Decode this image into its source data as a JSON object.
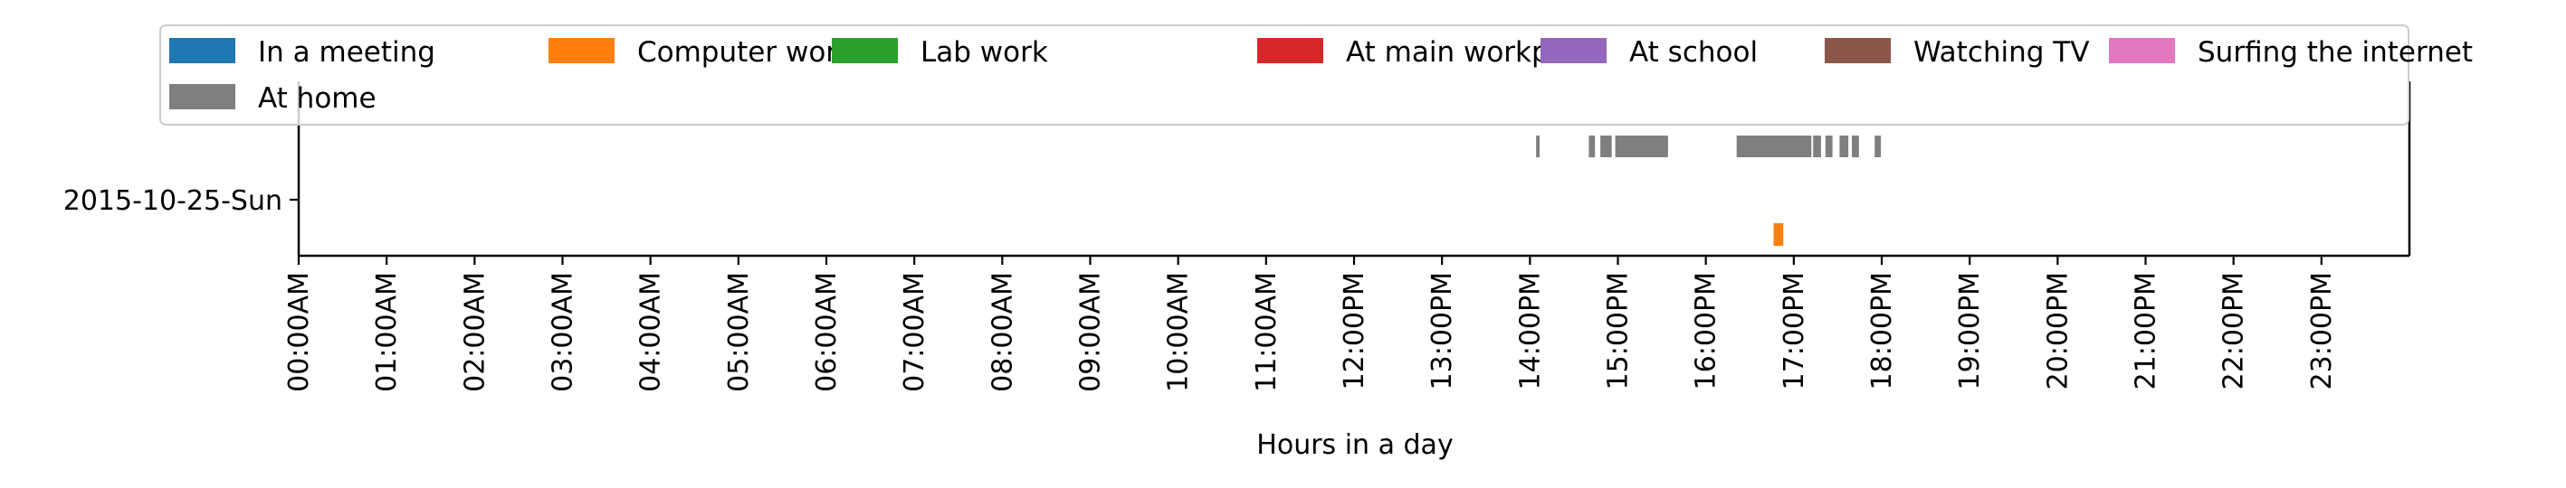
{
  "chart_data": {
    "type": "timeline",
    "xlabel": "Hours in a day",
    "x_ticks": [
      "00:00AM",
      "01:00AM",
      "02:00AM",
      "03:00AM",
      "04:00AM",
      "05:00AM",
      "06:00AM",
      "07:00AM",
      "08:00AM",
      "09:00AM",
      "10:00AM",
      "11:00AM",
      "12:00PM",
      "13:00PM",
      "14:00PM",
      "15:00PM",
      "16:00PM",
      "17:00PM",
      "18:00PM",
      "19:00PM",
      "20:00PM",
      "21:00PM",
      "22:00PM",
      "23:00PM"
    ],
    "xlim_hours": [
      0,
      24
    ],
    "y_categories": [
      "2015-10-25-Sun"
    ],
    "legend_position": "top",
    "legend": [
      {
        "name": "In a meeting",
        "color": "#1f77b4"
      },
      {
        "name": "Computer work",
        "color": "#ff7f0e"
      },
      {
        "name": "Lab work",
        "color": "#2ca02c"
      },
      {
        "name": "At main workplace",
        "color": "#d62728"
      },
      {
        "name": "At school",
        "color": "#9467bd"
      },
      {
        "name": "Watching TV",
        "color": "#8c564b"
      },
      {
        "name": "Surfing the internet",
        "color": "#e377c2"
      },
      {
        "name": "At home",
        "color": "#7f7f7f"
      }
    ],
    "series": [
      {
        "name": "At home",
        "day": "2015-10-25-Sun",
        "row": "upper",
        "intervals": [
          [
            14.07,
            14.11
          ],
          [
            14.67,
            14.74
          ],
          [
            14.8,
            14.93
          ],
          [
            14.97,
            15.57
          ],
          [
            16.35,
            17.2
          ],
          [
            17.22,
            17.31
          ],
          [
            17.36,
            17.44
          ],
          [
            17.52,
            17.62
          ],
          [
            17.66,
            17.74
          ],
          [
            17.92,
            17.99
          ]
        ]
      },
      {
        "name": "Computer work",
        "day": "2015-10-25-Sun",
        "row": "lower",
        "intervals": [
          [
            16.77,
            16.88
          ]
        ]
      }
    ]
  }
}
